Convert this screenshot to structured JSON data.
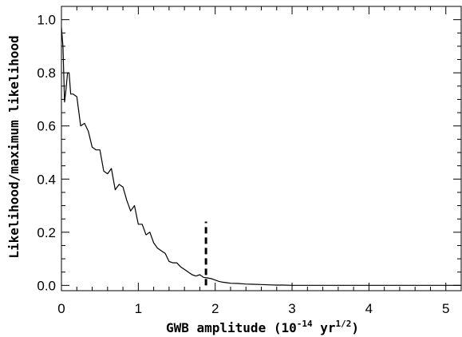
{
  "chart_data": {
    "type": "line",
    "title": "",
    "xlabel": {
      "prefix": "GWB amplitude (10",
      "exp1": "-14",
      "middle": " yr",
      "exp2": "1/2",
      "suffix": ")"
    },
    "ylabel": "Likelihood/maximum likelihood",
    "xlim": [
      0,
      5.2
    ],
    "ylim": [
      -0.02,
      1.05
    ],
    "xticks": [
      0,
      1,
      2,
      3,
      4,
      5
    ],
    "xtick_labels": [
      "0",
      "1",
      "2",
      "3",
      "4",
      "5"
    ],
    "yticks": [
      0.0,
      0.2,
      0.4,
      0.6,
      0.8,
      1.0
    ],
    "ytick_labels": [
      "0.0",
      "0.2",
      "0.4",
      "0.6",
      "0.8",
      "1.0"
    ],
    "grid": false,
    "series": [
      {
        "x": [
          0.0,
          0.02,
          0.04,
          0.06,
          0.08,
          0.1,
          0.12,
          0.15,
          0.2,
          0.25,
          0.3,
          0.35,
          0.4,
          0.45,
          0.5,
          0.55,
          0.6,
          0.65,
          0.7,
          0.75,
          0.8,
          0.85,
          0.9,
          0.95,
          1.0,
          1.05,
          1.1,
          1.15,
          1.2,
          1.25,
          1.3,
          1.35,
          1.4,
          1.45,
          1.5,
          1.55,
          1.6,
          1.65,
          1.7,
          1.75,
          1.8,
          1.85,
          1.9,
          1.95,
          2.0,
          2.05,
          2.1,
          2.15,
          2.2,
          2.3,
          2.4,
          2.5,
          2.6,
          2.7,
          2.8,
          2.9,
          3.0,
          3.2,
          3.5,
          4.0,
          4.5,
          5.0,
          5.2
        ],
        "y": [
          0.97,
          0.9,
          0.69,
          0.74,
          0.8,
          0.8,
          0.72,
          0.72,
          0.71,
          0.6,
          0.61,
          0.58,
          0.52,
          0.51,
          0.51,
          0.43,
          0.42,
          0.44,
          0.36,
          0.38,
          0.37,
          0.32,
          0.28,
          0.3,
          0.23,
          0.23,
          0.19,
          0.2,
          0.16,
          0.14,
          0.13,
          0.12,
          0.09,
          0.085,
          0.085,
          0.07,
          0.06,
          0.05,
          0.04,
          0.035,
          0.04,
          0.03,
          0.028,
          0.025,
          0.02,
          0.015,
          0.012,
          0.01,
          0.008,
          0.007,
          0.005,
          0.004,
          0.003,
          0.002,
          0.001,
          0.001,
          0.0,
          0.0,
          0.0,
          0.0,
          0.0,
          0.0,
          0.0
        ]
      }
    ],
    "annotations": [
      {
        "type": "vline",
        "style": "dashed",
        "x": 1.88,
        "y_from": 0.0,
        "y_to": 0.24
      }
    ]
  }
}
